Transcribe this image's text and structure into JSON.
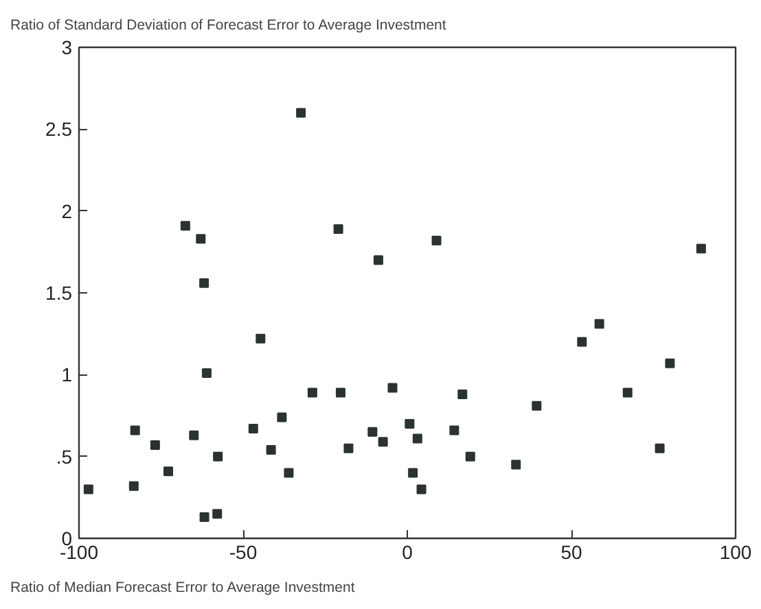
{
  "chart_data": {
    "type": "scatter",
    "title": "Ratio of Standard Deviation of Forecast Error to Average Investment",
    "xlabel": "Ratio of Median Forecast Error to Average Investment",
    "x": [
      -97.1,
      -83.3,
      -82.9,
      -76.8,
      -72.8,
      -67.6,
      -65,
      -62.9,
      -61.9,
      -61.8,
      -57.9,
      -61.1,
      -57.7,
      -46.9,
      -44.7,
      -41.5,
      -38.2,
      -36.1,
      -32.4,
      -28.9,
      -21,
      -20.3,
      -17.9,
      -10.6,
      -8.8,
      -7.4,
      -4.5,
      0.7,
      3.1,
      1.7,
      4.3,
      8.9,
      14.3,
      16.8,
      19.2,
      33.1,
      39.4,
      53.2,
      58.5,
      67.1,
      76.9,
      80,
      89.5
    ],
    "values": [
      0.3,
      0.32,
      0.66,
      0.57,
      0.41,
      1.91,
      0.63,
      1.83,
      1.56,
      0.13,
      0.15,
      1.01,
      0.5,
      0.67,
      1.22,
      0.54,
      0.74,
      0.4,
      2.6,
      0.89,
      1.89,
      0.89,
      0.55,
      0.65,
      1.7,
      0.59,
      0.92,
      0.7,
      0.61,
      0.4,
      0.3,
      1.82,
      0.66,
      0.88,
      0.5,
      0.45,
      0.81,
      1.2,
      1.31,
      0.89,
      0.55,
      1.07,
      1.77
    ],
    "color": "#2b3330",
    "marker": "square",
    "grid": false,
    "xlim": [
      -100,
      100
    ],
    "xticks": [
      -100,
      -50,
      0,
      50,
      100
    ],
    "ylim": [
      0,
      3
    ],
    "yticks": [
      0,
      {
        "value": 0.5,
        "label": ".5"
      },
      1,
      1.5,
      2,
      2.5,
      3
    ]
  }
}
